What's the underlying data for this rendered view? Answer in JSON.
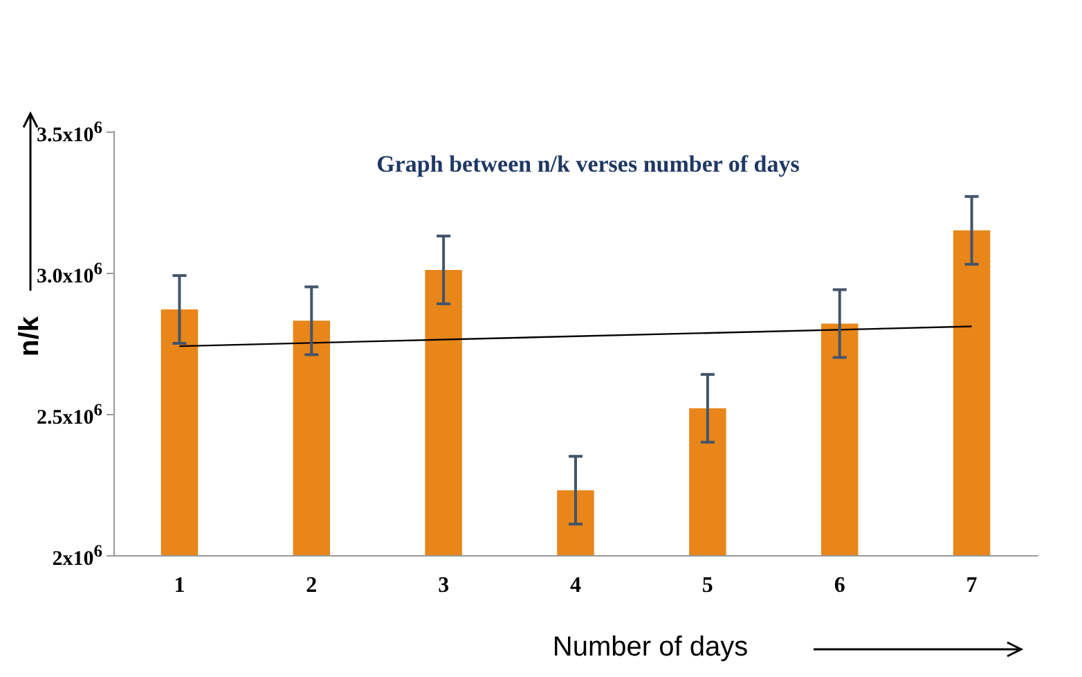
{
  "chart_data": {
    "type": "bar",
    "title": "Graph between n/k verses number of days",
    "xlabel": "Number of days",
    "ylabel": "n/k",
    "categories": [
      "1",
      "2",
      "3",
      "4",
      "5",
      "6",
      "7"
    ],
    "series": [
      {
        "color": "#e8861a",
        "values": [
          2870000,
          2830000,
          3010000,
          2230000,
          2520000,
          2820000,
          3150000
        ],
        "errors": [
          120000,
          120000,
          120000,
          120000,
          120000,
          120000,
          120000
        ]
      },
      {
        "type": "line",
        "color": "#000000",
        "x": [
          "1",
          "7"
        ],
        "values": [
          2740000,
          2810000
        ],
        "marker": "none"
      }
    ],
    "ylim": [
      2000000,
      3500000
    ],
    "yticks": [
      {
        "value": 2000000,
        "label": "2x10$^{6}$"
      },
      {
        "value": 2500000,
        "label": "2.5x10$^{6}$"
      },
      {
        "value": 3000000,
        "label": "3.0x10$^{6}$"
      },
      {
        "value": 3500000,
        "label": "3.5x10$^{6}$"
      }
    ],
    "grid": false
  }
}
